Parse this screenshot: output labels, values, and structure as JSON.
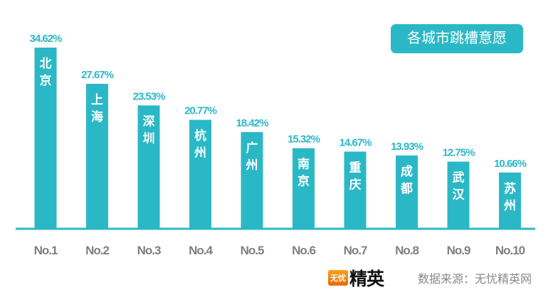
{
  "chart_data": {
    "type": "bar",
    "title": "各城市跳槽意愿",
    "categories": [
      "No.1",
      "No.2",
      "No.3",
      "No.4",
      "No.5",
      "No.6",
      "No.7",
      "No.8",
      "No.9",
      "No.10"
    ],
    "bar_labels": [
      "北京",
      "上海",
      "深圳",
      "杭州",
      "广州",
      "南京",
      "重庆",
      "成都",
      "武汉",
      "苏州"
    ],
    "values": [
      34.62,
      27.67,
      23.53,
      20.77,
      18.42,
      15.32,
      14.67,
      13.93,
      12.75,
      10.66
    ],
    "data_labels": [
      "34.62%",
      "27.67%",
      "23.53%",
      "20.77%",
      "18.42%",
      "15.32%",
      "14.67%",
      "13.93%",
      "12.75%",
      "10.66%"
    ],
    "xlabel": "",
    "ylabel": "",
    "ylim": [
      0,
      35
    ],
    "grid": false,
    "legend": "none",
    "colors": {
      "bar": "#2bb8c6",
      "tick_label": "#7f7f7f"
    }
  },
  "footer": {
    "logo_badge": "无忧",
    "logo_text": "精英",
    "source": "数据来源：无忧精英网"
  }
}
